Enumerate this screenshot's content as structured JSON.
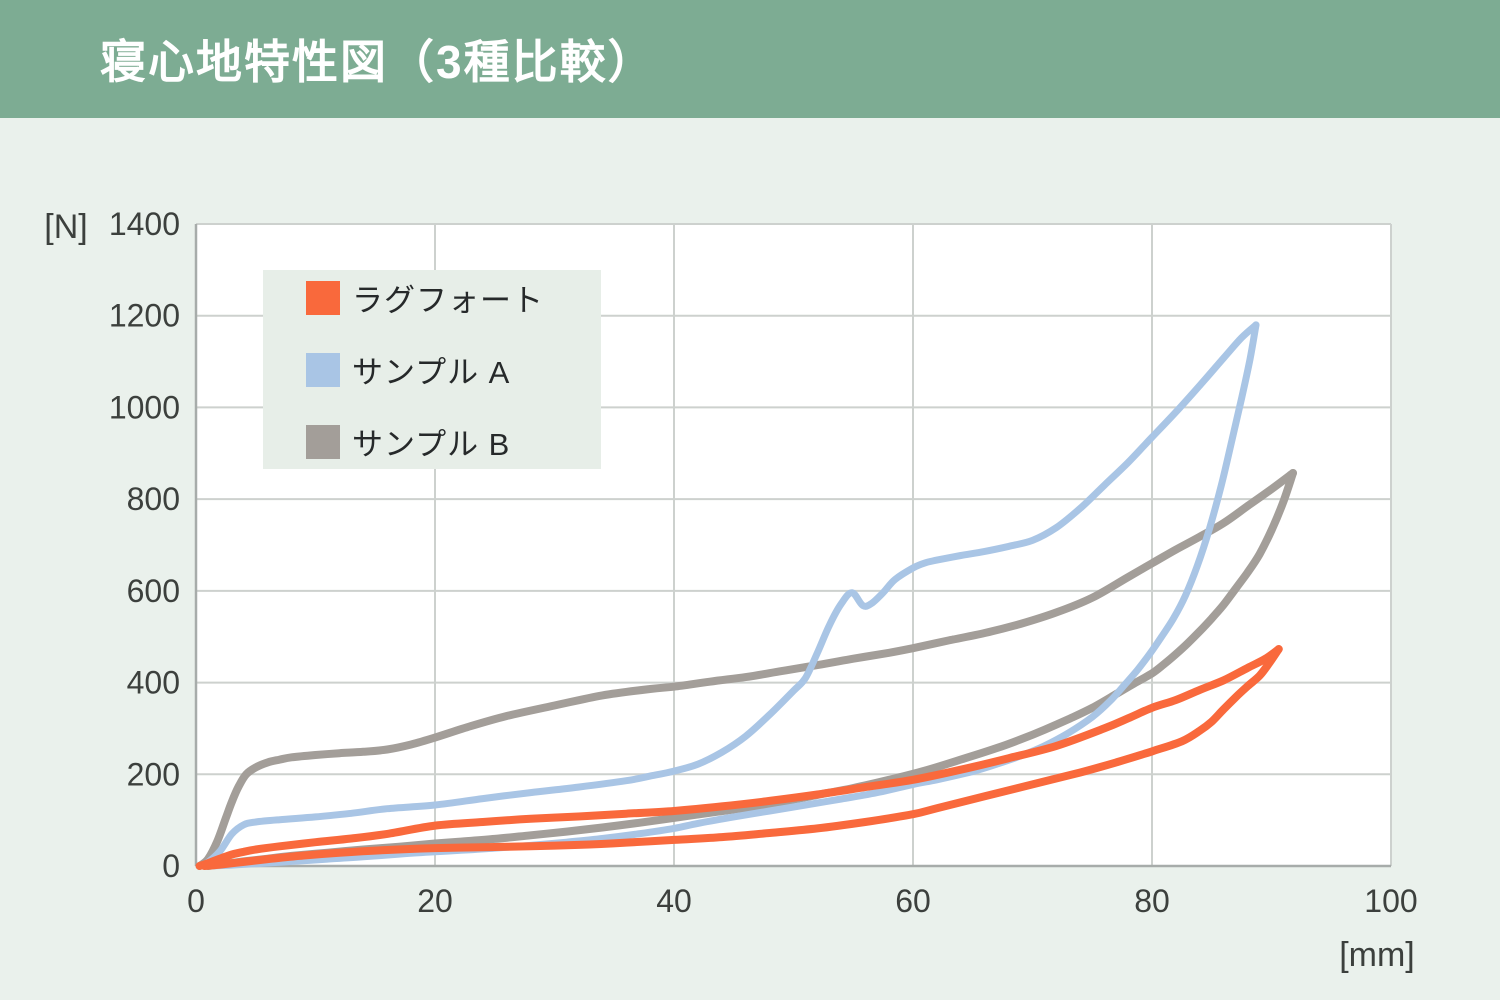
{
  "header": {
    "title": "寝心地特性図（3種比較）"
  },
  "axes": {
    "y_unit": "[N]",
    "x_unit": "[mm]"
  },
  "colors": {
    "header_bg": "#7dac93",
    "page_bg": "#eaf1ec",
    "plot_bg": "#ffffff",
    "grid": "#cdd1ce",
    "axis": "#a7acaa",
    "tick_text": "#3c403d",
    "legend_bg": "#e7eee8",
    "series_orange": "#f9693c",
    "series_blue": "#a9c5e5",
    "series_gray": "#a39e99"
  },
  "chart_data": {
    "type": "line",
    "title": "寝心地特性図（3種比較）",
    "xlabel": "[mm]",
    "ylabel": "[N]",
    "xlim": [
      0,
      100
    ],
    "ylim": [
      0,
      1400
    ],
    "x_ticks": [
      0,
      20,
      40,
      60,
      80,
      100
    ],
    "y_ticks": [
      0,
      200,
      400,
      600,
      800,
      1000,
      1200,
      1400
    ],
    "grid": true,
    "legend_position": "upper-left",
    "note": "Force-displacement hysteresis loops; each series has a loading (upper) and unloading (lower) branch, points are [mm, N].",
    "series": [
      {
        "name": "ラグフォート",
        "color": "#f9693c",
        "width": 8,
        "loading": [
          [
            0.3,
            0
          ],
          [
            1,
            6
          ],
          [
            2,
            16
          ],
          [
            3,
            25
          ],
          [
            4,
            31
          ],
          [
            5,
            36
          ],
          [
            7,
            43
          ],
          [
            10,
            52
          ],
          [
            13,
            60
          ],
          [
            16,
            70
          ],
          [
            20,
            88
          ],
          [
            24,
            96
          ],
          [
            28,
            103
          ],
          [
            32,
            108
          ],
          [
            36,
            114
          ],
          [
            40,
            120
          ],
          [
            44,
            130
          ],
          [
            48,
            142
          ],
          [
            52,
            156
          ],
          [
            56,
            172
          ],
          [
            60,
            188
          ],
          [
            64,
            210
          ],
          [
            68,
            235
          ],
          [
            72,
            262
          ],
          [
            76,
            300
          ],
          [
            78,
            322
          ],
          [
            80,
            345
          ],
          [
            82,
            362
          ],
          [
            84,
            384
          ],
          [
            86,
            405
          ],
          [
            88,
            432
          ],
          [
            89.5,
            452
          ],
          [
            90.6,
            473
          ]
        ],
        "unloading": [
          [
            90.6,
            473
          ],
          [
            89.8,
            442
          ],
          [
            89,
            415
          ],
          [
            88,
            392
          ],
          [
            87,
            368
          ],
          [
            86,
            342
          ],
          [
            85,
            315
          ],
          [
            84,
            295
          ],
          [
            82.5,
            272
          ],
          [
            80,
            250
          ],
          [
            77,
            226
          ],
          [
            74,
            204
          ],
          [
            70,
            178
          ],
          [
            66,
            152
          ],
          [
            62,
            126
          ],
          [
            60,
            113
          ],
          [
            56,
            96
          ],
          [
            52,
            82
          ],
          [
            48,
            72
          ],
          [
            44,
            63
          ],
          [
            40,
            57
          ],
          [
            36,
            51
          ],
          [
            32,
            46
          ],
          [
            28,
            43
          ],
          [
            24,
            41
          ],
          [
            20,
            39
          ],
          [
            16,
            35
          ],
          [
            12,
            29
          ],
          [
            9,
            23
          ],
          [
            6,
            15
          ],
          [
            4,
            9
          ],
          [
            2,
            3
          ],
          [
            0.7,
            0
          ]
        ]
      },
      {
        "name": "サンプル A",
        "color": "#a9c5e5",
        "width": 7,
        "loading": [
          [
            0.4,
            0
          ],
          [
            1,
            8
          ],
          [
            2,
            32
          ],
          [
            3,
            70
          ],
          [
            4,
            90
          ],
          [
            5,
            96
          ],
          [
            7,
            101
          ],
          [
            10,
            107
          ],
          [
            13,
            115
          ],
          [
            16,
            125
          ],
          [
            20,
            133
          ],
          [
            24,
            147
          ],
          [
            28,
            160
          ],
          [
            32,
            172
          ],
          [
            36,
            186
          ],
          [
            38,
            196
          ],
          [
            40,
            207
          ],
          [
            42,
            222
          ],
          [
            44,
            248
          ],
          [
            46,
            283
          ],
          [
            48,
            330
          ],
          [
            50,
            382
          ],
          [
            51,
            410
          ],
          [
            52,
            465
          ],
          [
            53,
            525
          ],
          [
            54,
            572
          ],
          [
            54.9,
            596
          ],
          [
            55.8,
            568
          ],
          [
            56.5,
            572
          ],
          [
            57.5,
            596
          ],
          [
            58.5,
            625
          ],
          [
            60,
            650
          ],
          [
            61,
            661
          ],
          [
            62,
            667
          ],
          [
            64,
            677
          ],
          [
            66,
            686
          ],
          [
            68,
            697
          ],
          [
            70,
            710
          ],
          [
            72,
            738
          ],
          [
            74,
            780
          ],
          [
            76,
            830
          ],
          [
            78,
            880
          ],
          [
            80,
            935
          ],
          [
            82,
            990
          ],
          [
            84,
            1048
          ],
          [
            86,
            1108
          ],
          [
            87.5,
            1152
          ],
          [
            88.7,
            1180
          ]
        ],
        "unloading": [
          [
            88.7,
            1180
          ],
          [
            88.2,
            1105
          ],
          [
            87.5,
            1020
          ],
          [
            86.7,
            930
          ],
          [
            85.8,
            830
          ],
          [
            84.8,
            735
          ],
          [
            83.8,
            655
          ],
          [
            82.8,
            590
          ],
          [
            81.8,
            540
          ],
          [
            80.8,
            500
          ],
          [
            79.8,
            462
          ],
          [
            78.8,
            428
          ],
          [
            77.7,
            395
          ],
          [
            76.5,
            360
          ],
          [
            75,
            325
          ],
          [
            73,
            290
          ],
          [
            71,
            262
          ],
          [
            69,
            240
          ],
          [
            67,
            222
          ],
          [
            65,
            206
          ],
          [
            62,
            188
          ],
          [
            60,
            178
          ],
          [
            57,
            160
          ],
          [
            54,
            146
          ],
          [
            51,
            133
          ],
          [
            48,
            120
          ],
          [
            45,
            107
          ],
          [
            42,
            93
          ],
          [
            40,
            82
          ],
          [
            37,
            70
          ],
          [
            34,
            60
          ],
          [
            31,
            52
          ],
          [
            28,
            45
          ],
          [
            25,
            39
          ],
          [
            22,
            34
          ],
          [
            20,
            31
          ],
          [
            17,
            26
          ],
          [
            14,
            20
          ],
          [
            11,
            15
          ],
          [
            8,
            10
          ],
          [
            5,
            5
          ],
          [
            3,
            2
          ],
          [
            1.2,
            0
          ]
        ]
      },
      {
        "name": "サンプル B",
        "color": "#a39e99",
        "width": 8,
        "loading": [
          [
            0.3,
            0
          ],
          [
            1,
            15
          ],
          [
            1.8,
            55
          ],
          [
            2.5,
            105
          ],
          [
            3,
            140
          ],
          [
            3.6,
            175
          ],
          [
            4.2,
            200
          ],
          [
            5,
            215
          ],
          [
            6,
            226
          ],
          [
            7,
            232
          ],
          [
            8,
            237
          ],
          [
            10,
            242
          ],
          [
            12,
            246
          ],
          [
            14,
            249
          ],
          [
            16,
            254
          ],
          [
            18,
            265
          ],
          [
            20,
            280
          ],
          [
            23,
            305
          ],
          [
            26,
            327
          ],
          [
            30,
            350
          ],
          [
            34,
            372
          ],
          [
            38,
            386
          ],
          [
            40,
            391
          ],
          [
            43,
            402
          ],
          [
            46,
            412
          ],
          [
            49,
            425
          ],
          [
            52,
            438
          ],
          [
            55,
            452
          ],
          [
            58,
            465
          ],
          [
            60,
            475
          ],
          [
            63,
            492
          ],
          [
            66,
            508
          ],
          [
            69,
            528
          ],
          [
            72,
            553
          ],
          [
            75,
            585
          ],
          [
            78,
            630
          ],
          [
            80,
            660
          ],
          [
            82,
            690
          ],
          [
            84,
            718
          ],
          [
            86,
            748
          ],
          [
            88,
            785
          ],
          [
            90,
            822
          ],
          [
            91.8,
            857
          ]
        ],
        "unloading": [
          [
            91.8,
            857
          ],
          [
            91,
            795
          ],
          [
            90,
            732
          ],
          [
            89,
            680
          ],
          [
            88,
            640
          ],
          [
            87,
            605
          ],
          [
            86,
            570
          ],
          [
            85,
            540
          ],
          [
            84,
            512
          ],
          [
            83,
            486
          ],
          [
            82,
            462
          ],
          [
            81,
            440
          ],
          [
            80,
            420
          ],
          [
            78.5,
            398
          ],
          [
            77,
            375
          ],
          [
            75,
            345
          ],
          [
            73,
            320
          ],
          [
            71,
            297
          ],
          [
            69,
            276
          ],
          [
            67,
            257
          ],
          [
            64,
            232
          ],
          [
            61,
            208
          ],
          [
            58,
            188
          ],
          [
            55,
            170
          ],
          [
            52,
            155
          ],
          [
            49,
            140
          ],
          [
            46,
            127
          ],
          [
            43,
            116
          ],
          [
            40,
            105
          ],
          [
            37,
            94
          ],
          [
            34,
            84
          ],
          [
            31,
            75
          ],
          [
            28,
            67
          ],
          [
            25,
            59
          ],
          [
            22,
            53
          ],
          [
            20,
            49
          ],
          [
            17,
            42
          ],
          [
            14,
            36
          ],
          [
            11,
            29
          ],
          [
            8,
            22
          ],
          [
            6,
            16
          ],
          [
            4,
            10
          ],
          [
            2.5,
            5
          ],
          [
            1,
            0
          ]
        ]
      }
    ]
  }
}
